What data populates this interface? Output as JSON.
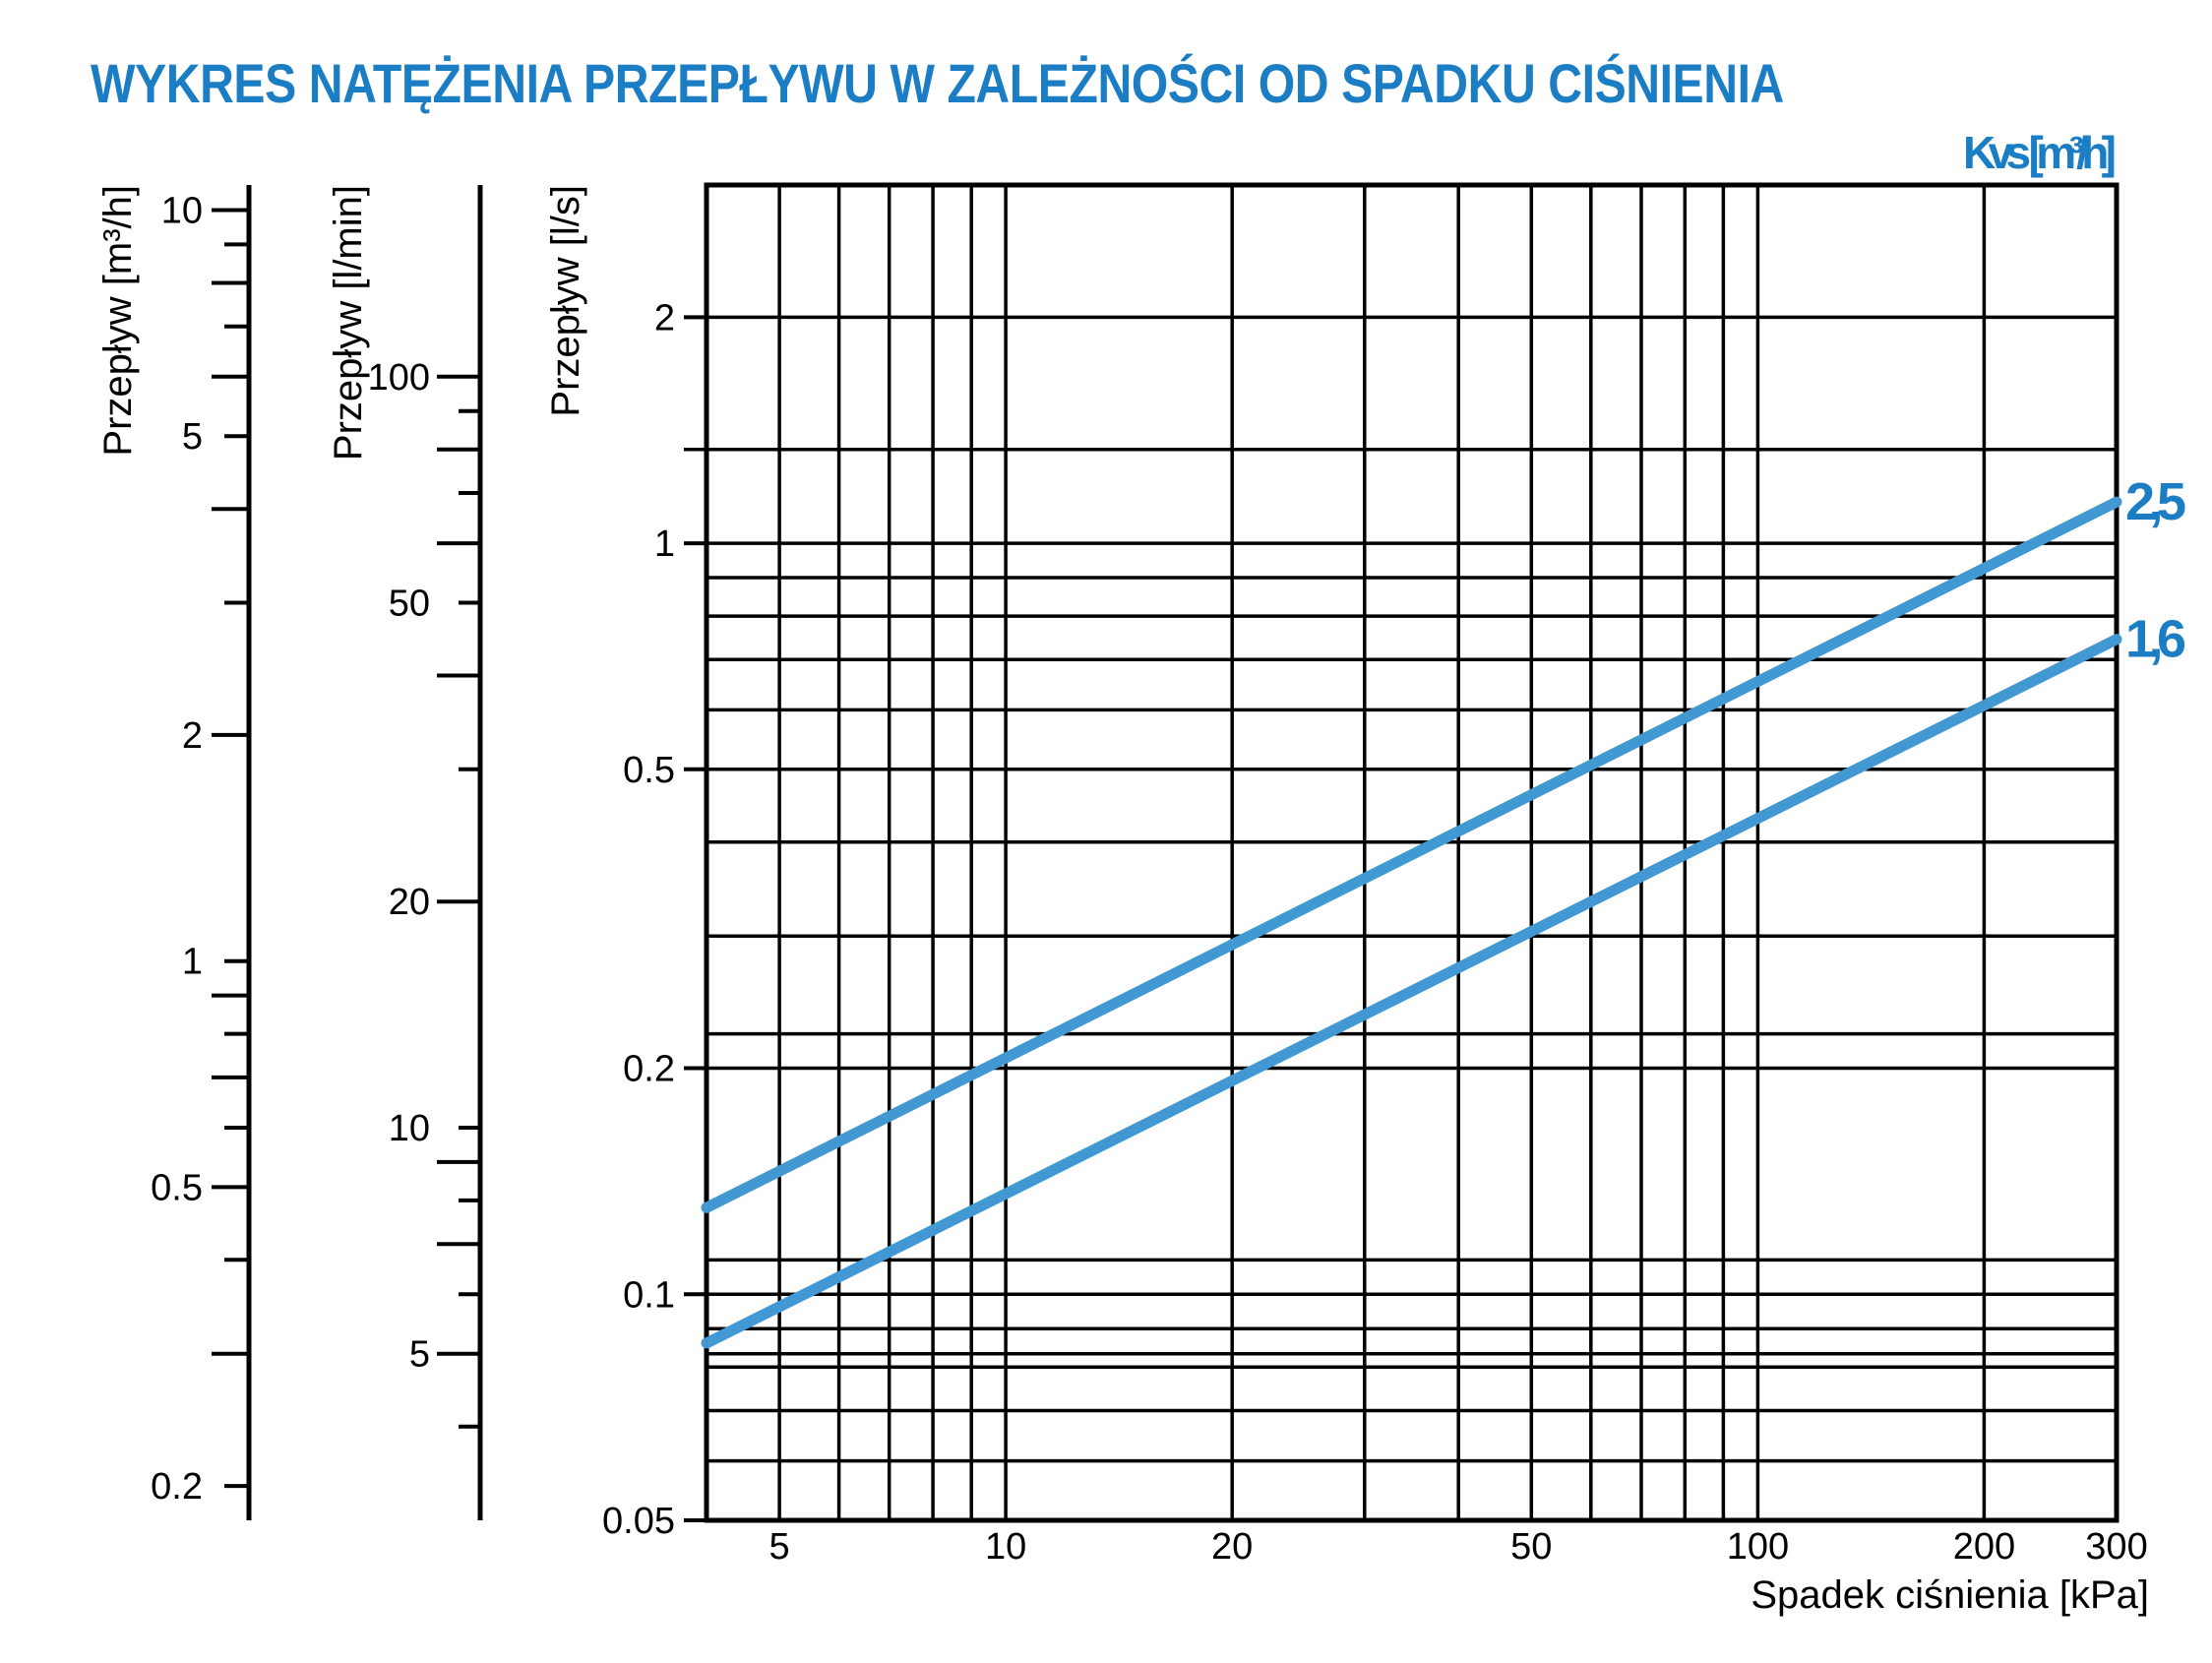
{
  "header": {
    "title": "WYKRES NATĘŻENIA PRZEPŁYWU W ZALEŻNOŚCI OD SPADKU CIŚNIENIA"
  },
  "colors": {
    "accent_text": "#1b7ec4",
    "series_line": "#4198d3",
    "grid": "#000000",
    "background": "#ffffff"
  },
  "chart_data": {
    "type": "line",
    "title": "WYKRES NATĘŻENIA PRZEPŁYWU W ZALEŻNOŚCI OD SPADKU CIŚNIENIA",
    "kvs_header": "Kvs [m³/h]",
    "x_axis": {
      "label": "Spadek ciśnienia [kPa]",
      "scale": "log",
      "range": [
        4,
        300
      ],
      "tick_labels": [
        "5",
        "10",
        "20",
        "50",
        "100",
        "200",
        "300"
      ],
      "tick_values": [
        5,
        10,
        20,
        50,
        100,
        200,
        300
      ],
      "gridlines": [
        5,
        6,
        7,
        8,
        9,
        10,
        20,
        30,
        40,
        50,
        60,
        70,
        80,
        90,
        100,
        200
      ]
    },
    "y_axis": {
      "label": "Przepływ [l/s]",
      "scale": "log",
      "range": [
        0.05,
        3
      ],
      "tick_labels": [
        "2",
        "1",
        "0.5",
        "0.2",
        "0.1",
        "0.05"
      ],
      "tick_values": [
        2,
        1,
        0.5,
        0.2,
        0.1,
        0.05
      ],
      "gridlines": [
        0.06,
        0.07,
        0.08,
        0.09,
        0.1,
        0.2,
        0.3,
        0.4,
        0.5,
        0.6,
        0.7,
        0.8,
        0.9,
        1,
        2
      ],
      "extra_gridlines": [
        1.3333,
        0.2222,
        0.1111,
        0.0833
      ],
      "extra_gridline_with_tick": 1.3333
    },
    "series": [
      {
        "name": "2,5",
        "kvs": 2.5,
        "points": [
          {
            "x": 4,
            "y": 0.1304
          },
          {
            "x": 300,
            "y": 1.135
          }
        ]
      },
      {
        "name": "1,6",
        "kvs": 1.6,
        "points": [
          {
            "x": 4,
            "y": 0.0861
          },
          {
            "x": 300,
            "y": 0.745
          }
        ]
      }
    ],
    "aux_scales": [
      {
        "label": "Przepływ [m³/h]",
        "unit": "m³/h",
        "to_ls": 0.277778,
        "ticks": [
          10,
          9,
          8,
          7,
          6,
          5,
          4,
          3,
          2,
          1,
          0.9,
          0.8,
          0.7,
          0.6,
          0.5,
          0.4,
          0.3,
          0.2
        ],
        "labeled_values": [
          10,
          5,
          2,
          1,
          0.5,
          0.2
        ],
        "labeled_strings": [
          "10",
          "5",
          "2",
          "1",
          "0.5",
          "0.2"
        ]
      },
      {
        "label": "Przepływ [l/min]",
        "unit": "l/min",
        "to_ls": 0.0166667,
        "ticks": [
          100,
          90,
          80,
          70,
          60,
          50,
          40,
          30,
          20,
          10,
          9,
          8,
          7,
          6,
          5,
          4
        ],
        "labeled_values": [
          100,
          50,
          20,
          10,
          5
        ],
        "labeled_strings": [
          "100",
          "50",
          "20",
          "10",
          "5"
        ]
      }
    ]
  }
}
